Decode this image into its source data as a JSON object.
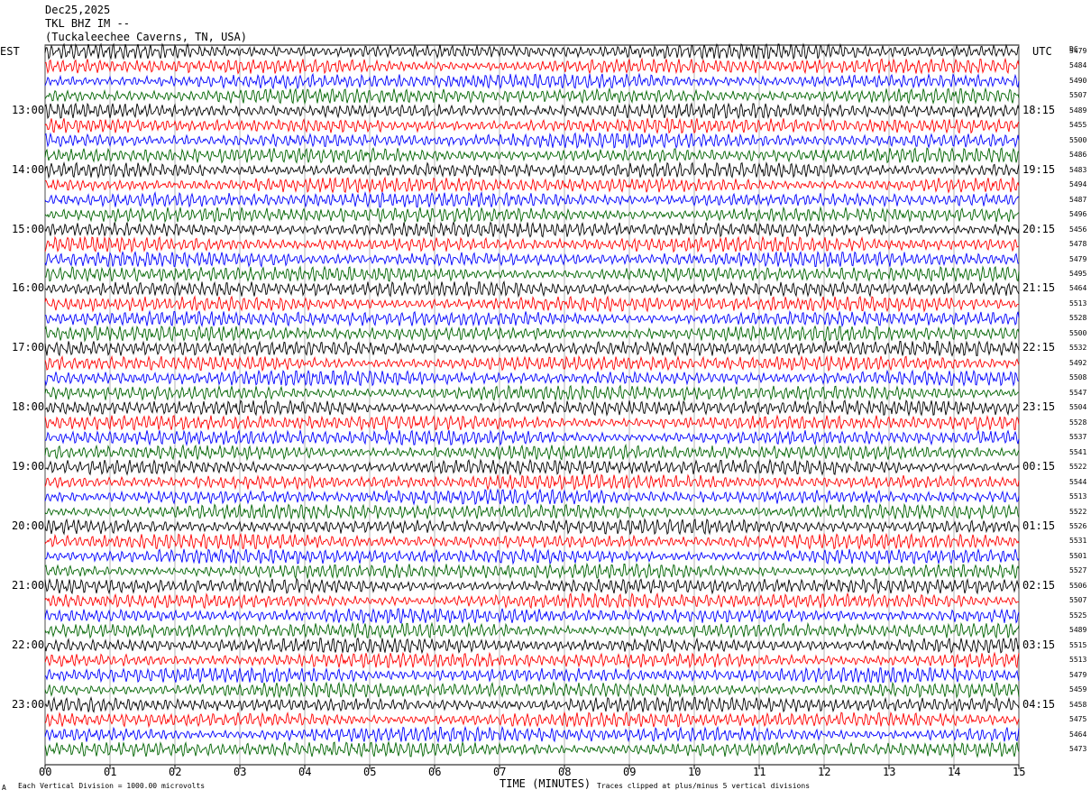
{
  "header": {
    "date": "Dec25,2025",
    "station": "TKL BHZ IM --",
    "location": "(Tuckaleechee Caverns, TN, USA)"
  },
  "left_timezone": "EST",
  "right_timezone": "UTC",
  "dc_label": "DC",
  "footer": {
    "scale_note": "Each Vertical Division = 1000.00 microvolts",
    "clip_note": "Traces clipped at plus/minus 5 vertical divisions",
    "corner_mark": "A"
  },
  "colors": {
    "trace_cycle": [
      "#000000",
      "#ff0000",
      "#0000ff",
      "#006400"
    ],
    "grid": "#808080"
  },
  "chart_data": {
    "type": "line",
    "subtype": "helicorder",
    "xlabel": "TIME (MINUTES)",
    "x_ticks": [
      "00",
      "01",
      "02",
      "03",
      "04",
      "05",
      "06",
      "07",
      "08",
      "09",
      "10",
      "11",
      "12",
      "13",
      "14",
      "15"
    ],
    "xlim": [
      0,
      15
    ],
    "trace_minutes": 15,
    "est_hour_labels": [
      "13:00",
      "14:00",
      "15:00",
      "16:00",
      "17:00",
      "18:00",
      "19:00",
      "20:00",
      "21:00",
      "22:00",
      "23:00"
    ],
    "utc_hour_labels": [
      "18:15",
      "19:15",
      "20:15",
      "21:15",
      "22:15",
      "23:15",
      "00:15",
      "01:15",
      "02:15",
      "03:15",
      "04:15"
    ],
    "dc_offsets": [
      5479,
      5484,
      5490,
      5507,
      5489,
      5455,
      5500,
      5486,
      5483,
      5494,
      5487,
      5496,
      5456,
      5478,
      5479,
      5495,
      5464,
      5513,
      5528,
      5500,
      5532,
      5492,
      5508,
      5547,
      5504,
      5528,
      5537,
      5541,
      5522,
      5544,
      5513,
      5522,
      5526,
      5531,
      5501,
      5527,
      5506,
      5507,
      5525,
      5489,
      5515,
      5513,
      5479,
      5459,
      5458,
      5475,
      5464,
      5473
    ]
  }
}
